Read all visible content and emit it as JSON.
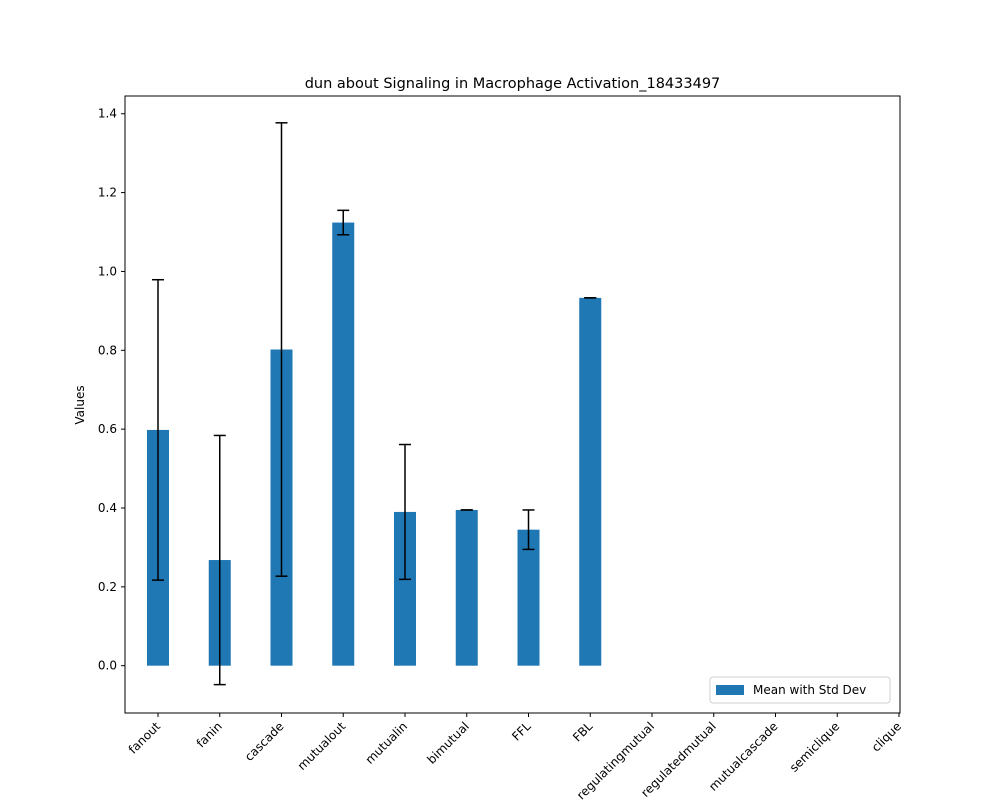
{
  "chart_data": {
    "type": "bar",
    "title": "dun about Signaling in Macrophage Activation_18433497",
    "xlabel": "",
    "ylabel": "Values",
    "ylim": [
      -0.12,
      1.445
    ],
    "yticks": [
      "0.0",
      "0.2",
      "0.4",
      "0.6",
      "0.8",
      "1.0",
      "1.2",
      "1.4"
    ],
    "categories": [
      "fanout",
      "fanin",
      "cascade",
      "mutualout",
      "mutualin",
      "bimutual",
      "FFL",
      "FBL",
      "regulatingmutual",
      "regulatedmutual",
      "mutualcascade",
      "semiclique",
      "clique"
    ],
    "series": [
      {
        "name": "Mean with Std Dev",
        "color": "#1f77b4",
        "values": [
          0.598,
          0.268,
          0.802,
          1.124,
          0.39,
          0.395,
          0.345,
          0.933,
          null,
          null,
          null,
          null,
          null
        ],
        "std": [
          0.381,
          0.316,
          0.575,
          0.031,
          0.171,
          0.0,
          0.05,
          0.0,
          null,
          null,
          null,
          null,
          null
        ]
      }
    ],
    "grid": false,
    "legend_position": "lower-right"
  }
}
